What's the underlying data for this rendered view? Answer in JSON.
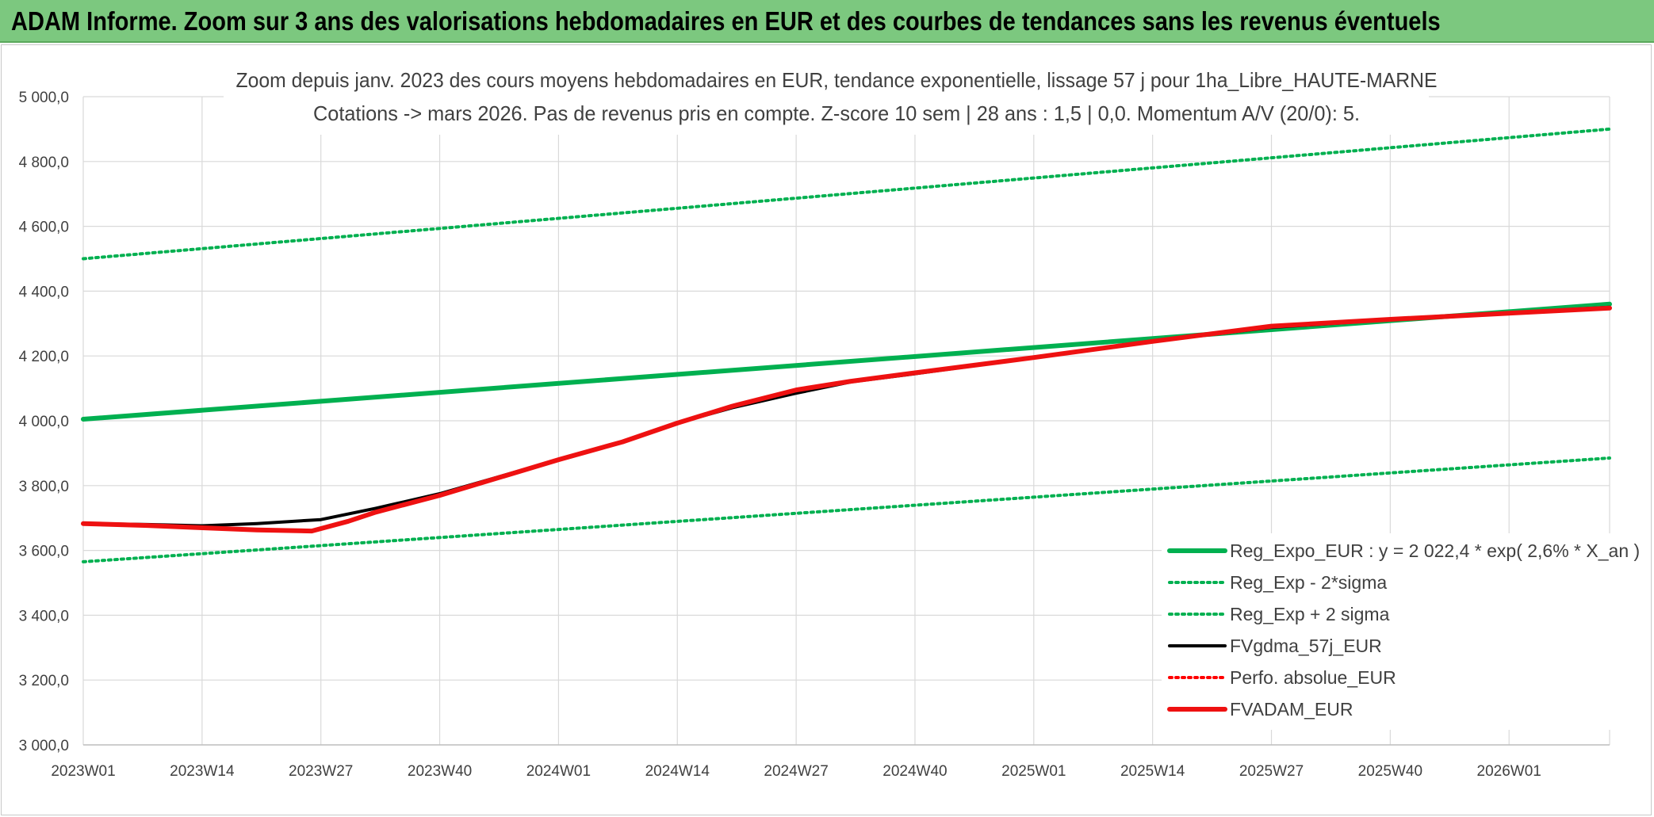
{
  "header": {
    "title": "ADAM Informe. Zoom sur 3 ans des valorisations hebdomadaires en EUR et des courbes de tendances sans les revenus éventuels"
  },
  "chart_data": {
    "type": "line",
    "title": "Zoom depuis janv. 2023 des cours moyens hebdomadaires en EUR, tendance exponentielle, lissage 57 j pour 1ha_Libre_HAUTE-MARNE",
    "subtitle": "Cotations -> mars 2026. Pas de revenus pris en compte. Z-score 10 sem | 28 ans : 1,5 | 0,0. Momentum A/V (20/0): 5.",
    "xlabel": "",
    "ylabel": "",
    "ylim": [
      3000,
      5000
    ],
    "yticks": [
      3000,
      3200,
      3400,
      3600,
      3800,
      4000,
      4200,
      4400,
      4600,
      4800,
      5000
    ],
    "ytick_labels": [
      "3 000,0",
      "3 200,0",
      "3 400,0",
      "3 600,0",
      "3 800,0",
      "4 000,0",
      "4 200,0",
      "4 400,0",
      "4 600,0",
      "4 800,0",
      "5 000,0"
    ],
    "x_categories": [
      "2023W01",
      "2023W14",
      "2023W27",
      "2023W40",
      "2024W01",
      "2024W14",
      "2024W27",
      "2024W40",
      "2025W01",
      "2025W14",
      "2025W27",
      "2025W40",
      "2026W01"
    ],
    "x_last_week": "2026W12",
    "grid": true,
    "legend_position": "bottom-right",
    "series": [
      {
        "name": "Reg_Expo_EUR : y = 2 022,4 * exp( 2,6% *  X_an )",
        "color": "#00b050",
        "style": "solid",
        "points": [
          [
            "2023W01",
            4005
          ],
          [
            "2026W12",
            4360
          ]
        ]
      },
      {
        "name": "Reg_Exp - 2*sigma",
        "color": "#00b050",
        "style": "dotted",
        "points": [
          [
            "2023W01",
            3565
          ],
          [
            "2026W12",
            3885
          ]
        ]
      },
      {
        "name": "Reg_Exp + 2 sigma",
        "color": "#00b050",
        "style": "dotted",
        "points": [
          [
            "2023W01",
            4500
          ],
          [
            "2026W12",
            4900
          ]
        ]
      },
      {
        "name": "FVgdma_57j_EUR",
        "color": "#000000",
        "style": "solid",
        "points": [
          [
            "2023W01",
            3683
          ],
          [
            "2023W08",
            3680
          ],
          [
            "2023W14",
            3676
          ],
          [
            "2023W20",
            3683
          ],
          [
            "2023W27",
            3695
          ],
          [
            "2023W33",
            3730
          ],
          [
            "2023W40",
            3775
          ],
          [
            "2024W01",
            3880
          ],
          [
            "2024W08",
            3935
          ],
          [
            "2024W14",
            3993
          ],
          [
            "2024W20",
            4040
          ],
          [
            "2024W27",
            4085
          ],
          [
            "2024W33",
            4120
          ],
          [
            "2024W40",
            4145
          ],
          [
            "2025W01",
            4195
          ],
          [
            "2025W14",
            4245
          ],
          [
            "2025W27",
            4288
          ],
          [
            "2025W40",
            4312
          ],
          [
            "2026W01",
            4333
          ],
          [
            "2026W12",
            4350
          ]
        ]
      },
      {
        "name": "Perfo. absolue_EUR",
        "color": "#ff0000",
        "style": "dotted",
        "points": []
      },
      {
        "name": "FVADAM_EUR",
        "color": "#ee1111",
        "style": "solid",
        "points": [
          [
            "2023W01",
            3683
          ],
          [
            "2023W08",
            3677
          ],
          [
            "2023W14",
            3670
          ],
          [
            "2023W20",
            3663
          ],
          [
            "2023W26",
            3660
          ],
          [
            "2023W30",
            3690
          ],
          [
            "2023W33",
            3718
          ],
          [
            "2023W40",
            3770
          ],
          [
            "2024W01",
            3880
          ],
          [
            "2024W08",
            3935
          ],
          [
            "2024W14",
            3993
          ],
          [
            "2024W20",
            4045
          ],
          [
            "2024W27",
            4095
          ],
          [
            "2024W33",
            4122
          ],
          [
            "2024W40",
            4148
          ],
          [
            "2025W01",
            4195
          ],
          [
            "2025W14",
            4245
          ],
          [
            "2025W27",
            4292
          ],
          [
            "2025W40",
            4313
          ],
          [
            "2026W01",
            4332
          ],
          [
            "2026W12",
            4348
          ]
        ]
      }
    ]
  }
}
